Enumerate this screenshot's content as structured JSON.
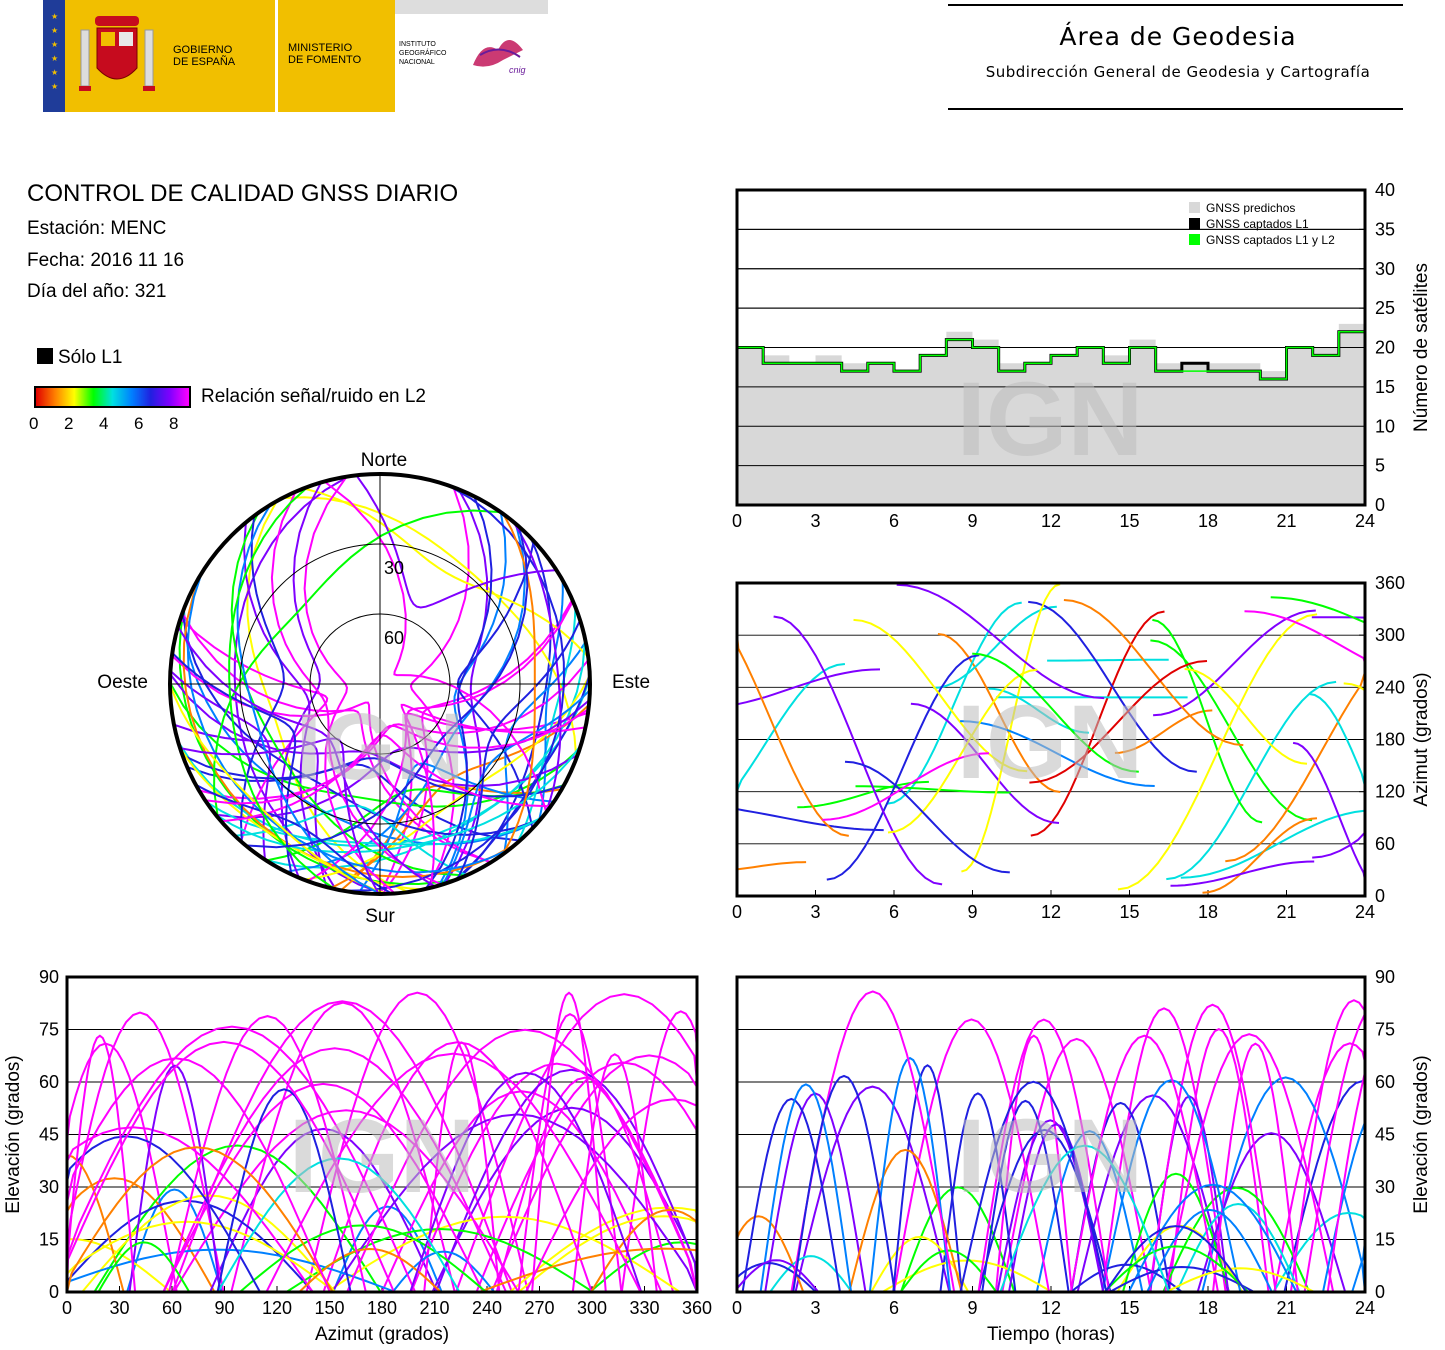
{
  "header": {
    "gobierno": [
      "GOBIERNO",
      "DE ESPAÑA"
    ],
    "ministerio": [
      "MINISTERIO",
      "DE FOMENTO"
    ],
    "instituto": [
      "INSTITUTO",
      "GEOGRÁFICO",
      "NACIONAL"
    ],
    "cnig": "cnig",
    "area_title": "Área de Geodesia",
    "area_subtitle": "Subdirección General de Geodesia y Cartografía"
  },
  "report": {
    "title": "CONTROL DE CALIDAD GNSS DIARIO",
    "station": "Estación: MENC",
    "date": "Fecha: 2016 11 16",
    "doy": "Día del año: 321"
  },
  "legend": {
    "l1_only": "Sólo L1",
    "snr_label": "Relación señal/ruido en L2",
    "snr_ticks": [
      "0",
      "2",
      "4",
      "6",
      "8"
    ],
    "colors": [
      "#e00000",
      "#ff8000",
      "#ffff00",
      "#00ff00",
      "#00e0e0",
      "#0080ff",
      "#2020e0",
      "#8000ff",
      "#ff00ff"
    ]
  },
  "watermark": "IGN",
  "chart_data": [
    {
      "type": "line",
      "title": "",
      "ylabel": "Número de satélites",
      "xlim": [
        0,
        24
      ],
      "ylim": [
        0,
        40
      ],
      "xticks": [
        "0",
        "3",
        "6",
        "9",
        "12",
        "15",
        "18",
        "21",
        "24"
      ],
      "yticks": [
        "0",
        "5",
        "10",
        "15",
        "20",
        "25",
        "30",
        "35",
        "40"
      ],
      "grid": true,
      "legend_position": "top-right",
      "series": [
        {
          "name": "GNSS predichos",
          "color": "#d8d8d8",
          "x": [
            0,
            1,
            2,
            3,
            4,
            5,
            6,
            7,
            8,
            9,
            10,
            11,
            12,
            13,
            14,
            15,
            16,
            17,
            18,
            19,
            20,
            21,
            22,
            23,
            24
          ],
          "values": [
            20,
            19,
            18,
            19,
            18,
            18,
            17,
            19,
            22,
            21,
            18,
            18,
            19,
            20,
            19,
            21,
            18,
            18,
            18,
            18,
            17,
            20,
            20,
            23,
            20
          ]
        },
        {
          "name": "GNSS captados L1",
          "color": "#000000",
          "x": [
            0,
            1,
            2,
            3,
            4,
            5,
            6,
            7,
            8,
            9,
            10,
            11,
            12,
            13,
            14,
            15,
            16,
            17,
            18,
            19,
            20,
            21,
            22,
            23,
            24
          ],
          "values": [
            20,
            18,
            18,
            18,
            17,
            18,
            17,
            19,
            21,
            20,
            17,
            18,
            19,
            20,
            18,
            20,
            17,
            18,
            17,
            17,
            16,
            20,
            19,
            22,
            19
          ]
        },
        {
          "name": "GNSS captados L1 y L2",
          "color": "#00ff00",
          "x": [
            0,
            1,
            2,
            3,
            4,
            5,
            6,
            7,
            8,
            9,
            10,
            11,
            12,
            13,
            14,
            15,
            16,
            17,
            18,
            19,
            20,
            21,
            22,
            23,
            24
          ],
          "values": [
            20,
            18,
            18,
            18,
            17,
            18,
            17,
            19,
            21,
            20,
            17,
            18,
            19,
            20,
            18,
            20,
            17,
            17,
            17,
            17,
            16,
            20,
            19,
            22,
            19
          ]
        }
      ]
    },
    {
      "type": "scatter",
      "title": "",
      "ylabel": "Azimut (grados)",
      "xlim": [
        0,
        24
      ],
      "ylim": [
        0,
        360
      ],
      "xticks": [
        "0",
        "3",
        "6",
        "9",
        "12",
        "15",
        "18",
        "21",
        "24"
      ],
      "yticks": [
        "0",
        "60",
        "120",
        "180",
        "240",
        "300",
        "360"
      ],
      "grid": true
    },
    {
      "type": "scatter",
      "title": "",
      "xlabel": "Azimut (grados)",
      "ylabel": "Elevación (grados)",
      "xlim": [
        0,
        360
      ],
      "ylim": [
        0,
        90
      ],
      "xticks": [
        "0",
        "30",
        "60",
        "90",
        "120",
        "150",
        "180",
        "210",
        "240",
        "270",
        "300",
        "330",
        "360"
      ],
      "yticks": [
        "0",
        "15",
        "30",
        "45",
        "60",
        "75",
        "90"
      ],
      "grid": true
    },
    {
      "type": "scatter",
      "title": "",
      "xlabel": "Tiempo (horas)",
      "ylabel": "Elevación (grados)",
      "xlim": [
        0,
        24
      ],
      "ylim": [
        0,
        90
      ],
      "xticks": [
        "0",
        "3",
        "6",
        "9",
        "12",
        "15",
        "18",
        "21",
        "24"
      ],
      "yticks": [
        "0",
        "15",
        "30",
        "45",
        "60",
        "75",
        "90"
      ],
      "grid": true
    },
    {
      "type": "scatter",
      "title": "",
      "polar": true,
      "labels": {
        "north": "Norte",
        "south": "Sur",
        "east": "Este",
        "west": "Oeste"
      },
      "rings": [
        "30",
        "60"
      ]
    }
  ]
}
